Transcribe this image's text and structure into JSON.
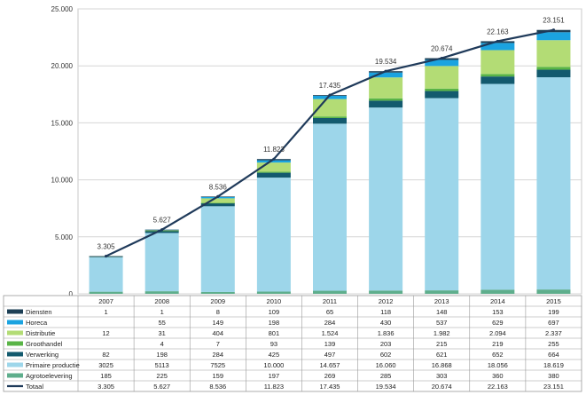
{
  "chart_data": {
    "type": "bar",
    "stacked": true,
    "categories": [
      "2007",
      "2008",
      "2009",
      "2010",
      "2011",
      "2012",
      "2013",
      "2014",
      "2015"
    ],
    "ylim": [
      0,
      25000
    ],
    "y_ticks": [
      0,
      5000,
      10000,
      15000,
      20000,
      25000
    ],
    "y_tick_labels": [
      "0",
      "5.000",
      "10.000",
      "15.000",
      "20.000",
      "25.000"
    ],
    "gridlines": true,
    "legend_placement": "table-below",
    "series": [
      {
        "name": "Diensten",
        "color": "#1c3f55",
        "values": [
          1,
          1,
          8,
          109,
          65,
          118,
          148,
          153,
          199
        ],
        "cells": [
          "1",
          "1",
          "8",
          "109",
          "65",
          "118",
          "148",
          "153",
          "199"
        ]
      },
      {
        "name": "Horeca",
        "color": "#1ba3e0",
        "values": [
          0,
          55,
          149,
          198,
          284,
          430,
          537,
          629,
          697
        ],
        "cells": [
          "",
          "55",
          "149",
          "198",
          "284",
          "430",
          "537",
          "629",
          "697"
        ]
      },
      {
        "name": "Distributie",
        "color": "#b3dc75",
        "values": [
          12,
          31,
          404,
          801,
          1524,
          1836,
          1982,
          2094,
          2337
        ],
        "cells": [
          "12",
          "31",
          "404",
          "801",
          "1.524",
          "1.836",
          "1.982",
          "2.094",
          "2.337"
        ]
      },
      {
        "name": "Groothandel",
        "color": "#59b446",
        "values": [
          0,
          4,
          7,
          93,
          139,
          203,
          215,
          219,
          255
        ],
        "cells": [
          "",
          "4",
          "7",
          "93",
          "139",
          "203",
          "215",
          "219",
          "255"
        ]
      },
      {
        "name": "Verwerking",
        "color": "#135a6e",
        "values": [
          82,
          198,
          284,
          425,
          497,
          602,
          621,
          652,
          664
        ],
        "cells": [
          "82",
          "198",
          "284",
          "425",
          "497",
          "602",
          "621",
          "652",
          "664"
        ]
      },
      {
        "name": "Primaire productie",
        "color": "#9dd6ea",
        "values": [
          3025,
          5113,
          7525,
          10000,
          14657,
          16060,
          16868,
          18056,
          18619
        ],
        "cells": [
          "3025",
          "5113",
          "7525",
          "10.000",
          "14.657",
          "16.060",
          "16.868",
          "18.056",
          "18.619"
        ]
      },
      {
        "name": "Agrotoelevering",
        "color": "#5eae8c",
        "values": [
          185,
          225,
          159,
          197,
          269,
          285,
          303,
          360,
          380
        ],
        "cells": [
          "185",
          "225",
          "159",
          "197",
          "269",
          "285",
          "303",
          "360",
          "380"
        ]
      }
    ],
    "total": {
      "name": "Totaal",
      "color": "#1f3a5a",
      "type": "line",
      "values": [
        3305,
        5627,
        8536,
        11823,
        17435,
        19534,
        20674,
        22163,
        23151
      ],
      "labels": [
        "3.305",
        "5.627",
        "8.536",
        "11.823",
        "17.435",
        "19.534",
        "20.674",
        "22.163",
        "23.151"
      ]
    }
  }
}
